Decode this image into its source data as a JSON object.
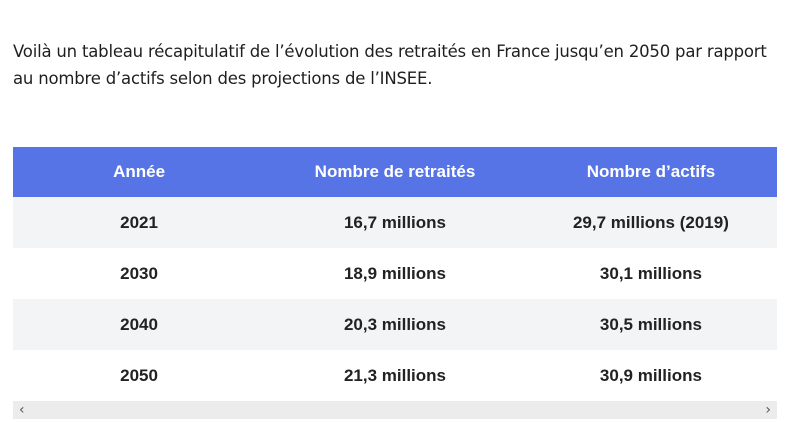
{
  "intro": "Voilà un tableau récapitulatif de l’évolution des retraités en France jusqu’en 2050 par rapport au nombre d’actifs selon des projections de l’INSEE.",
  "table": {
    "headers": [
      "Année",
      "Nombre de retraités",
      "Nombre d’actifs"
    ],
    "rows": [
      [
        "2021",
        "16,7 millions",
        "29,7 millions (2019)"
      ],
      [
        "2030",
        "18,9 millions",
        "30,1 millions"
      ],
      [
        "2040",
        "20,3 millions",
        "30,5 millions"
      ],
      [
        "2050",
        "21,3 millions",
        "30,9 millions"
      ]
    ]
  },
  "scroll": {
    "left": "‹",
    "right": "›"
  }
}
